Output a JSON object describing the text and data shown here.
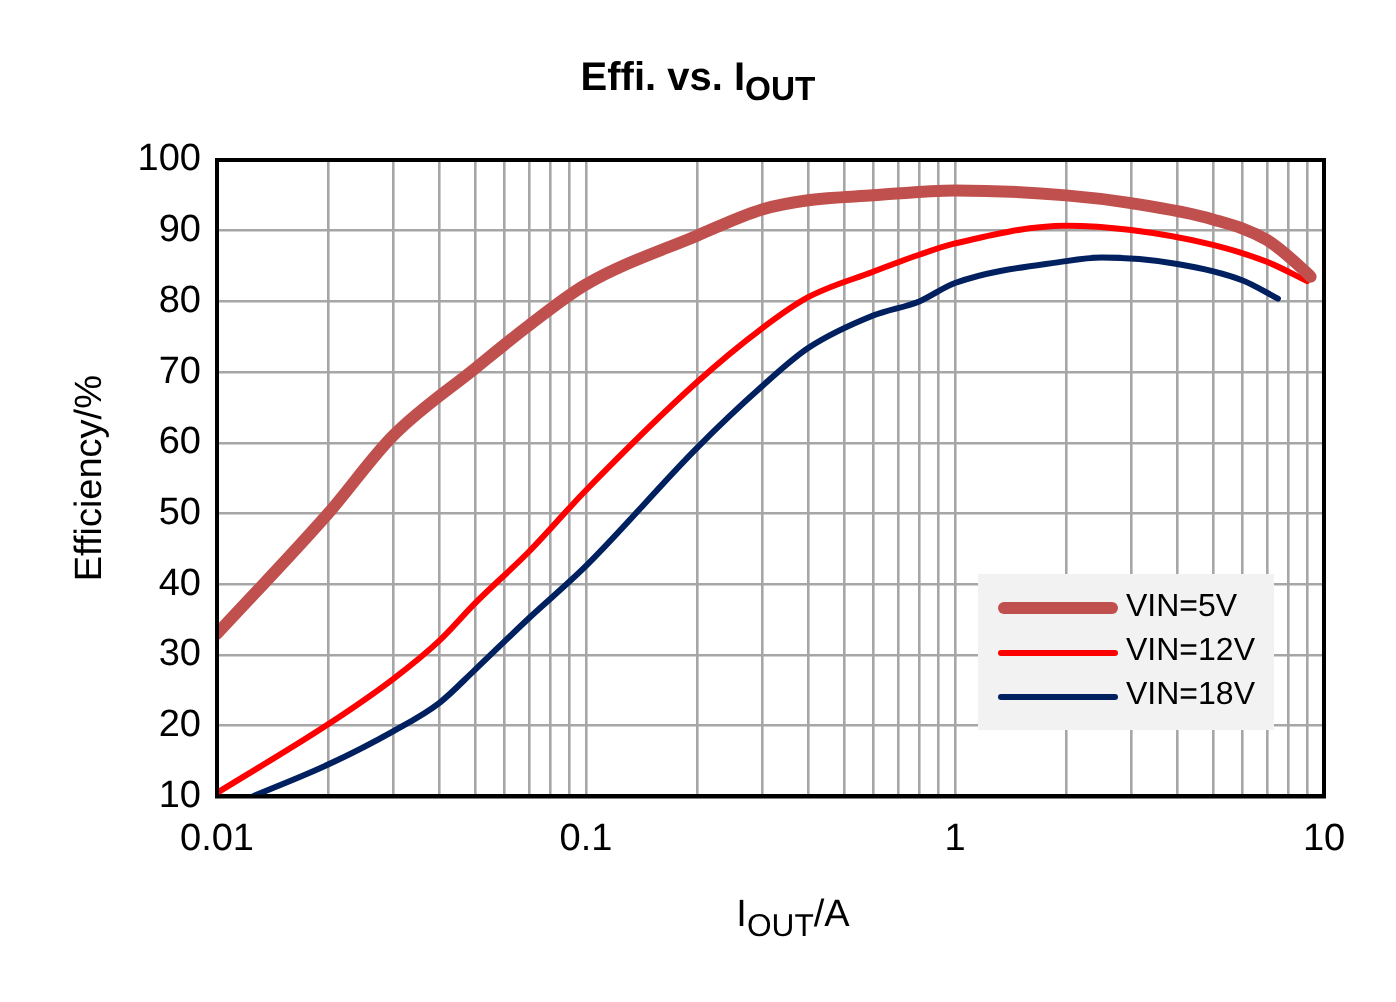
{
  "chart_data": {
    "type": "line",
    "title": "Effi. vs. I$_{OUT}$",
    "xlabel": "I$_{OUT}$/A",
    "ylabel": "Efficiency/%",
    "log": "x",
    "grid": true,
    "legend": "bottom right",
    "marker": "none",
    "line_style": "solid",
    "xlim": [
      0.01,
      10
    ],
    "ylim": [
      10,
      100
    ],
    "xticks": [
      {
        "value": 0.01,
        "label": "0.01"
      },
      {
        "value": 0.02,
        "label": null
      },
      {
        "value": 0.03,
        "label": null
      },
      {
        "value": 0.04,
        "label": null
      },
      {
        "value": 0.05,
        "label": null
      },
      {
        "value": 0.06,
        "label": null
      },
      {
        "value": 0.07,
        "label": null
      },
      {
        "value": 0.08,
        "label": null
      },
      {
        "value": 0.09,
        "label": null
      },
      {
        "value": 0.1,
        "label": "0.1"
      },
      {
        "value": 0.2,
        "label": null
      },
      {
        "value": 0.3,
        "label": null
      },
      {
        "value": 0.4,
        "label": null
      },
      {
        "value": 0.5,
        "label": null
      },
      {
        "value": 0.6,
        "label": null
      },
      {
        "value": 0.7,
        "label": null
      },
      {
        "value": 0.8,
        "label": null
      },
      {
        "value": 0.9,
        "label": null
      },
      1,
      {
        "value": 2,
        "label": null
      },
      {
        "value": 3,
        "label": null
      },
      {
        "value": 4,
        "label": null
      },
      {
        "value": 5,
        "label": null
      },
      {
        "value": 6,
        "label": null
      },
      {
        "value": 7,
        "label": null
      },
      {
        "value": 8,
        "label": null
      },
      {
        "value": 9,
        "label": null
      },
      10
    ],
    "yticks": [
      10,
      20,
      30,
      40,
      50,
      60,
      70,
      80,
      90,
      100
    ],
    "series": [
      {
        "name": "VIN=5V",
        "color": "#c0504d",
        "x": [
          0.01,
          0.02,
          0.03,
          0.05,
          0.07,
          0.1,
          0.2,
          0.3,
          0.4,
          0.6,
          1,
          2,
          3,
          5,
          7,
          9,
          9.2
        ],
        "values": [
          33,
          50,
          61,
          70.5,
          76.6,
          82.4,
          89.3,
          93,
          94.3,
          95,
          95.7,
          95,
          93.9,
          91.6,
          88.7,
          84,
          83.5
        ]
      },
      {
        "name": "VIN=12V",
        "color": "#ff0000",
        "x": [
          0.01,
          0.02,
          0.03,
          0.04,
          0.05,
          0.07,
          0.1,
          0.2,
          0.3,
          0.4,
          0.6,
          0.8,
          1,
          2,
          3,
          5,
          7,
          9
        ],
        "values": [
          10.5,
          20.2,
          26.6,
          32,
          37.3,
          44.6,
          53.3,
          68.6,
          76.2,
          80.6,
          84.2,
          86.6,
          88.2,
          90.7,
          90.1,
          88,
          85.6,
          82.9
        ]
      },
      {
        "name": "VIN=18V",
        "color": "#002060",
        "x": [
          0.0125,
          0.02,
          0.03,
          0.04,
          0.05,
          0.07,
          0.1,
          0.2,
          0.3,
          0.4,
          0.6,
          0.8,
          1,
          2,
          2.5,
          4,
          6,
          7.5
        ],
        "values": [
          10,
          14.5,
          19.2,
          23.2,
          27.9,
          35.2,
          42.6,
          59.3,
          68,
          73.4,
          78,
          80,
          82.6,
          85.7,
          86.2,
          85.3,
          83,
          80.4
        ]
      }
    ]
  }
}
